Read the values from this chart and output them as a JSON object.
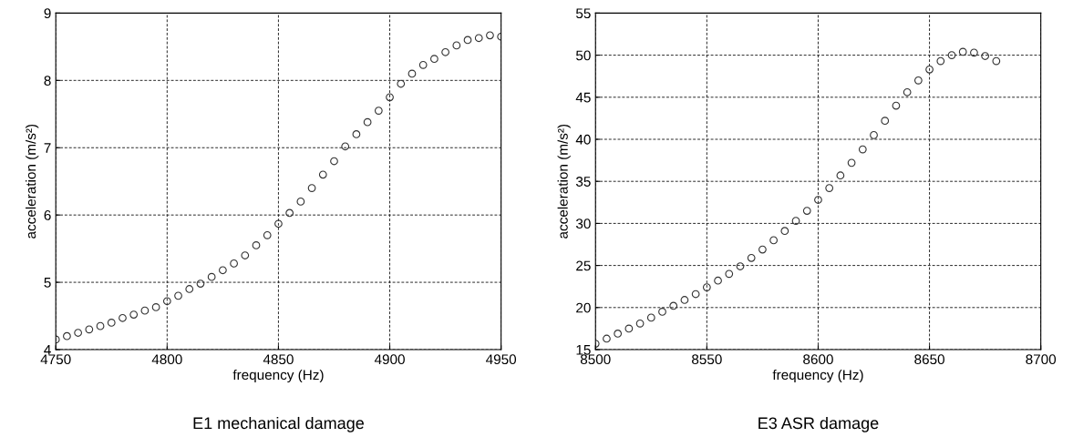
{
  "chart_data": [
    {
      "type": "scatter",
      "title": "E1 mechanical damage",
      "xlabel": "frequency (Hz)",
      "ylabel": "acceleration (m/s²)",
      "xlim": [
        4750,
        4950
      ],
      "ylim": [
        4,
        9
      ],
      "xticks": [
        4750,
        4800,
        4850,
        4900,
        4950
      ],
      "yticks": [
        4,
        5,
        6,
        7,
        8,
        9
      ],
      "grid": true,
      "marker": "circle",
      "series": [
        {
          "color": "#333333",
          "x": [
            4750,
            4755,
            4760,
            4765,
            4770,
            4775,
            4780,
            4785,
            4790,
            4795,
            4800,
            4805,
            4810,
            4815,
            4820,
            4825,
            4830,
            4835,
            4840,
            4845,
            4850,
            4855,
            4860,
            4865,
            4870,
            4875,
            4880,
            4885,
            4890,
            4895,
            4900,
            4905,
            4910,
            4915,
            4920,
            4925,
            4930,
            4935,
            4940,
            4945,
            4950
          ],
          "values": [
            4.15,
            4.2,
            4.25,
            4.3,
            4.35,
            4.4,
            4.47,
            4.52,
            4.58,
            4.63,
            4.72,
            4.8,
            4.9,
            4.98,
            5.08,
            5.18,
            5.28,
            5.4,
            5.55,
            5.7,
            5.87,
            6.03,
            6.2,
            6.4,
            6.6,
            6.8,
            7.02,
            7.2,
            7.38,
            7.55,
            7.75,
            7.95,
            8.1,
            8.23,
            8.32,
            8.42,
            8.52,
            8.6,
            8.63,
            8.67,
            8.65
          ]
        }
      ]
    },
    {
      "type": "scatter",
      "title": "E3 ASR damage",
      "xlabel": "frequency (Hz)",
      "ylabel": "acceleration (m/s²)",
      "xlim": [
        8500,
        8700
      ],
      "ylim": [
        15,
        55
      ],
      "xticks": [
        8500,
        8550,
        8600,
        8650,
        8700
      ],
      "yticks": [
        15,
        20,
        25,
        30,
        35,
        40,
        45,
        50,
        55
      ],
      "grid": true,
      "marker": "circle",
      "series": [
        {
          "color": "#333333",
          "x": [
            8500,
            8505,
            8510,
            8515,
            8520,
            8525,
            8530,
            8535,
            8540,
            8545,
            8550,
            8555,
            8560,
            8565,
            8570,
            8575,
            8580,
            8585,
            8590,
            8595,
            8600,
            8605,
            8610,
            8615,
            8620,
            8625,
            8630,
            8635,
            8640,
            8645,
            8650,
            8655,
            8660,
            8665,
            8670,
            8675,
            8680
          ],
          "values": [
            15.7,
            16.3,
            16.9,
            17.5,
            18.1,
            18.8,
            19.5,
            20.2,
            20.9,
            21.6,
            22.4,
            23.2,
            24.0,
            24.9,
            25.9,
            26.9,
            28.0,
            29.1,
            30.3,
            31.5,
            32.8,
            34.2,
            35.7,
            37.2,
            38.8,
            40.5,
            42.2,
            44.0,
            45.6,
            47.0,
            48.3,
            49.3,
            50.0,
            50.4,
            50.3,
            49.9,
            49.3
          ]
        }
      ]
    }
  ]
}
